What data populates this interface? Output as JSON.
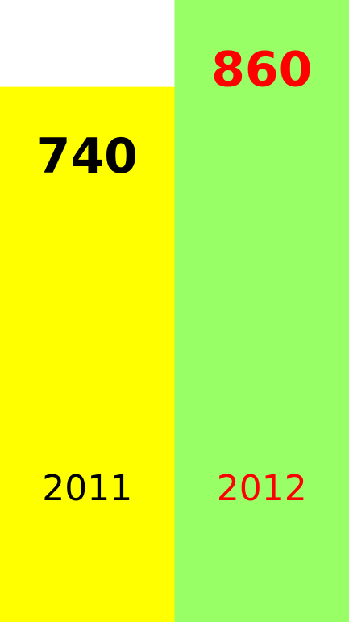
{
  "chart_data": {
    "type": "bar",
    "categories": [
      "2011",
      "2012"
    ],
    "values": [
      740,
      860
    ],
    "colors": [
      "#ffff00",
      "#99ff66"
    ],
    "label_colors": [
      "#000000",
      "#ff0000"
    ]
  }
}
